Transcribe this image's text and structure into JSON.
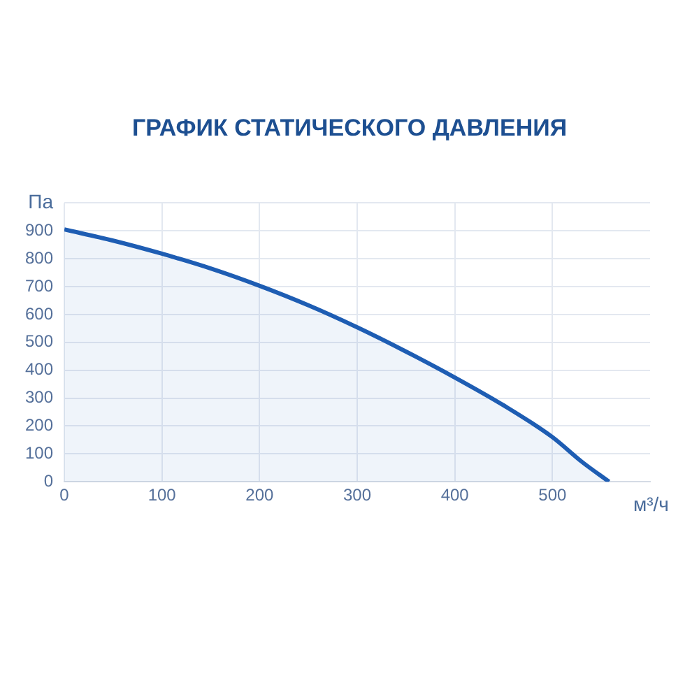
{
  "chart_data": {
    "type": "area",
    "title": "ГРАФИК СТАТИЧЕСКОГО ДАВЛЕНИЯ",
    "xlabel": "м³/ч",
    "ylabel": "Па",
    "series": [
      {
        "color": "#1e5db3",
        "x": [
          0,
          50,
          100,
          150,
          200,
          250,
          300,
          350,
          400,
          450,
          500,
          530,
          558
        ],
        "values": [
          905,
          865,
          818,
          765,
          703,
          633,
          554,
          467,
          374,
          274,
          160,
          72,
          0
        ]
      }
    ],
    "xlim": [
      0,
      600
    ],
    "xticks": [
      0,
      100,
      200,
      300,
      400,
      500
    ],
    "ylim": [
      0,
      1000
    ],
    "yticks": [
      0,
      100,
      200,
      300,
      400,
      500,
      600,
      700,
      800,
      900
    ],
    "grid": true,
    "marker": "none"
  }
}
